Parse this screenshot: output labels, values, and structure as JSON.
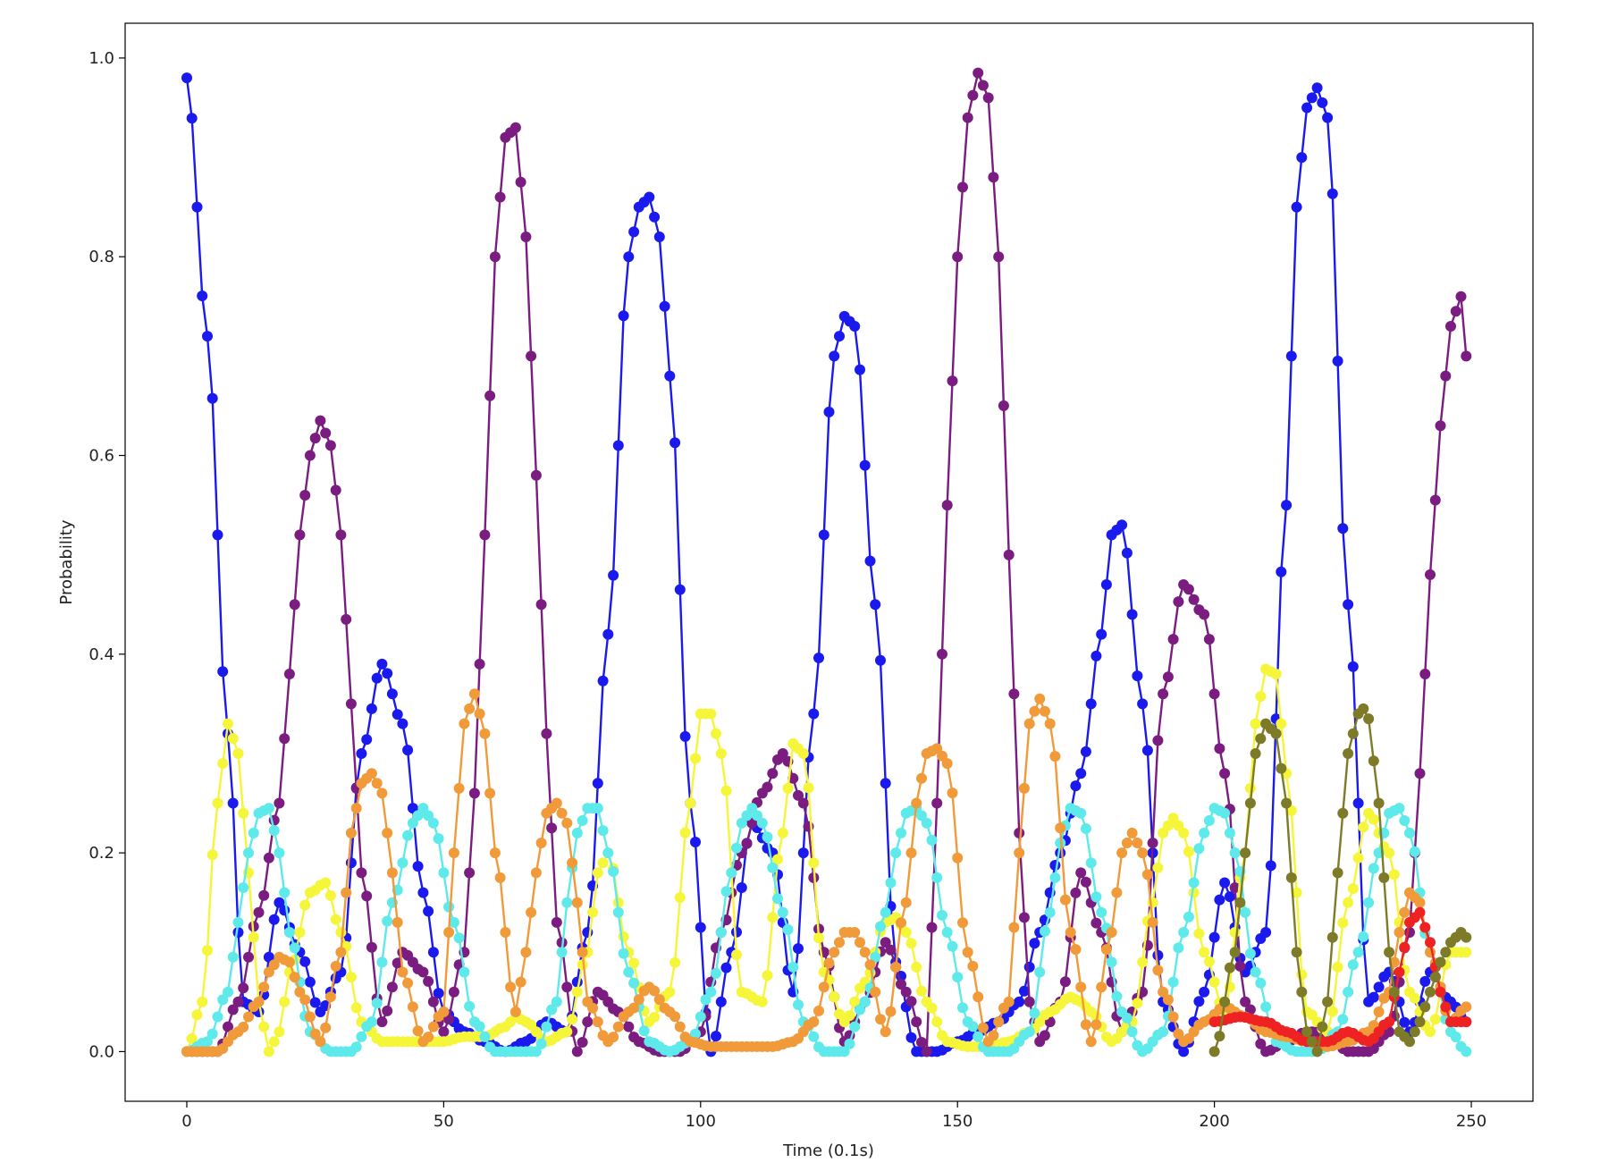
{
  "chart_data": {
    "type": "line",
    "title": "",
    "xlabel": "Time (0.1s)",
    "ylabel": "Probability",
    "xlim": [
      -12,
      262
    ],
    "ylim": [
      -0.05,
      1.035
    ],
    "xticks": [
      0,
      50,
      100,
      150,
      200,
      250
    ],
    "yticks": [
      0.0,
      0.2,
      0.4,
      0.6,
      0.8,
      1.0
    ],
    "grid": false,
    "legend": "none",
    "markers": "circle",
    "series": [
      {
        "color": "#1a1aee",
        "x": [
          0,
          4,
          8,
          11,
          14,
          18,
          22,
          26,
          30,
          34,
          38,
          42,
          46,
          50,
          54,
          58,
          62,
          66,
          70,
          74,
          78,
          82,
          86,
          88,
          90,
          92,
          94,
          98,
          102,
          106,
          110,
          114,
          118,
          122,
          126,
          128,
          130,
          134,
          138,
          142,
          146,
          150,
          154,
          158,
          162,
          166,
          170,
          174,
          178,
          180,
          182,
          186,
          190,
          194,
          198,
          202,
          206,
          210,
          214,
          216,
          218,
          220,
          222,
          226,
          230,
          234,
          238,
          242,
          246,
          249
        ],
        "values": [
          0.98,
          0.72,
          0.32,
          0.05,
          0.04,
          0.15,
          0.1,
          0.04,
          0.08,
          0.3,
          0.39,
          0.33,
          0.16,
          0.04,
          0.02,
          0.01,
          0.0,
          0.01,
          0.03,
          0.02,
          0.12,
          0.42,
          0.8,
          0.85,
          0.86,
          0.82,
          0.68,
          0.25,
          0.0,
          0.1,
          0.23,
          0.2,
          0.06,
          0.34,
          0.7,
          0.74,
          0.73,
          0.45,
          0.09,
          0.0,
          0.0,
          0.01,
          0.02,
          0.03,
          0.05,
          0.12,
          0.2,
          0.28,
          0.42,
          0.52,
          0.53,
          0.35,
          0.05,
          0.0,
          0.06,
          0.17,
          0.08,
          0.12,
          0.55,
          0.85,
          0.95,
          0.97,
          0.94,
          0.45,
          0.05,
          0.08,
          0.02,
          0.08,
          0.05,
          0.03
        ]
      },
      {
        "color": "#7a1c80",
        "x": [
          0,
          6,
          10,
          14,
          18,
          20,
          22,
          24,
          26,
          28,
          30,
          32,
          34,
          38,
          42,
          46,
          50,
          54,
          56,
          58,
          60,
          62,
          64,
          66,
          68,
          70,
          72,
          76,
          80,
          84,
          88,
          92,
          96,
          100,
          104,
          108,
          112,
          116,
          120,
          124,
          128,
          132,
          136,
          140,
          144,
          146,
          148,
          150,
          152,
          154,
          156,
          158,
          160,
          162,
          164,
          166,
          170,
          174,
          178,
          182,
          186,
          190,
          194,
          198,
          202,
          206,
          210,
          214,
          218,
          222,
          226,
          230,
          234,
          238,
          240,
          242,
          244,
          246,
          248,
          249
        ],
        "values": [
          0.0,
          0.0,
          0.05,
          0.14,
          0.25,
          0.38,
          0.52,
          0.6,
          0.635,
          0.61,
          0.52,
          0.35,
          0.18,
          0.03,
          0.1,
          0.08,
          0.02,
          0.1,
          0.26,
          0.52,
          0.8,
          0.92,
          0.93,
          0.82,
          0.58,
          0.32,
          0.13,
          0.0,
          0.06,
          0.04,
          0.01,
          0.0,
          0.0,
          0.02,
          0.12,
          0.2,
          0.26,
          0.3,
          0.25,
          0.1,
          0.01,
          0.05,
          0.11,
          0.06,
          0.0,
          0.25,
          0.55,
          0.8,
          0.94,
          0.985,
          0.96,
          0.8,
          0.5,
          0.22,
          0.05,
          0.01,
          0.05,
          0.18,
          0.12,
          0.02,
          0.06,
          0.36,
          0.47,
          0.44,
          0.28,
          0.05,
          0.0,
          0.01,
          0.02,
          0.02,
          0.0,
          0.0,
          0.02,
          0.12,
          0.28,
          0.48,
          0.63,
          0.73,
          0.76,
          0.7
        ]
      },
      {
        "color": "#f5f53a",
        "x": [
          0,
          3,
          6,
          8,
          10,
          12,
          14,
          16,
          18,
          20,
          24,
          27,
          30,
          34,
          38,
          42,
          46,
          50,
          54,
          58,
          62,
          64,
          66,
          70,
          74,
          78,
          80,
          82,
          86,
          90,
          94,
          98,
          100,
          102,
          104,
          108,
          112,
          116,
          118,
          120,
          124,
          128,
          132,
          136,
          138,
          140,
          144,
          148,
          152,
          156,
          160,
          164,
          168,
          172,
          174,
          176,
          180,
          184,
          188,
          190,
          192,
          194,
          198,
          202,
          206,
          208,
          210,
          212,
          214,
          218,
          222,
          226,
          230,
          234,
          238,
          242,
          246,
          249
        ],
        "values": [
          0.0,
          0.05,
          0.25,
          0.33,
          0.3,
          0.18,
          0.05,
          0.0,
          0.02,
          0.08,
          0.16,
          0.17,
          0.12,
          0.03,
          0.01,
          0.01,
          0.01,
          0.01,
          0.015,
          0.015,
          0.025,
          0.035,
          0.03,
          0.01,
          0.02,
          0.1,
          0.18,
          0.2,
          0.1,
          0.03,
          0.06,
          0.25,
          0.34,
          0.34,
          0.3,
          0.06,
          0.05,
          0.22,
          0.31,
          0.3,
          0.08,
          0.03,
          0.07,
          0.13,
          0.135,
          0.12,
          0.05,
          0.01,
          0.005,
          0.005,
          0.01,
          0.02,
          0.04,
          0.055,
          0.05,
          0.04,
          0.01,
          0.03,
          0.15,
          0.22,
          0.235,
          0.22,
          0.1,
          0.04,
          0.2,
          0.33,
          0.385,
          0.38,
          0.28,
          0.04,
          0.02,
          0.15,
          0.24,
          0.2,
          0.06,
          0.02,
          0.1,
          0.1
        ]
      },
      {
        "color": "#5eeaea",
        "x": [
          0,
          4,
          8,
          10,
          12,
          14,
          16,
          18,
          20,
          24,
          28,
          32,
          36,
          40,
          44,
          46,
          48,
          52,
          56,
          60,
          64,
          68,
          72,
          74,
          76,
          78,
          80,
          82,
          86,
          90,
          94,
          98,
          102,
          106,
          108,
          110,
          112,
          116,
          120,
          124,
          128,
          132,
          136,
          138,
          140,
          142,
          144,
          148,
          152,
          156,
          160,
          164,
          168,
          170,
          172,
          174,
          178,
          182,
          186,
          190,
          194,
          198,
          200,
          202,
          204,
          208,
          212,
          216,
          220,
          224,
          228,
          232,
          234,
          236,
          238,
          242,
          246,
          249
        ],
        "values": [
          0.0,
          0.01,
          0.06,
          0.13,
          0.2,
          0.24,
          0.245,
          0.2,
          0.12,
          0.02,
          0.0,
          0.0,
          0.03,
          0.15,
          0.23,
          0.245,
          0.23,
          0.13,
          0.03,
          0.0,
          0.0,
          0.0,
          0.05,
          0.15,
          0.22,
          0.245,
          0.245,
          0.2,
          0.08,
          0.01,
          0.0,
          0.01,
          0.06,
          0.18,
          0.23,
          0.245,
          0.23,
          0.14,
          0.03,
          0.0,
          0.0,
          0.05,
          0.14,
          0.2,
          0.24,
          0.245,
          0.23,
          0.12,
          0.03,
          0.0,
          0.0,
          0.02,
          0.14,
          0.21,
          0.245,
          0.24,
          0.14,
          0.04,
          0.0,
          0.02,
          0.12,
          0.22,
          0.245,
          0.24,
          0.2,
          0.08,
          0.01,
          0.0,
          0.0,
          0.02,
          0.1,
          0.2,
          0.24,
          0.245,
          0.22,
          0.1,
          0.02,
          0.0
        ]
      },
      {
        "color": "#f09a3a",
        "x": [
          0,
          6,
          10,
          14,
          16,
          18,
          20,
          22,
          26,
          30,
          32,
          34,
          36,
          38,
          40,
          42,
          46,
          50,
          52,
          54,
          56,
          58,
          60,
          64,
          66,
          68,
          70,
          72,
          74,
          76,
          78,
          82,
          86,
          90,
          94,
          98,
          102,
          106,
          110,
          114,
          118,
          122,
          126,
          128,
          130,
          132,
          136,
          140,
          142,
          144,
          146,
          148,
          152,
          156,
          160,
          162,
          164,
          166,
          168,
          172,
          176,
          180,
          182,
          184,
          186,
          190,
          194,
          198,
          202,
          206,
          210,
          214,
          218,
          222,
          226,
          230,
          234,
          236,
          238,
          240,
          242,
          246,
          249
        ],
        "values": [
          0.0,
          0.0,
          0.02,
          0.05,
          0.08,
          0.095,
          0.09,
          0.06,
          0.01,
          0.1,
          0.22,
          0.27,
          0.28,
          0.26,
          0.18,
          0.08,
          0.01,
          0.04,
          0.2,
          0.33,
          0.36,
          0.32,
          0.2,
          0.04,
          0.1,
          0.18,
          0.24,
          0.25,
          0.23,
          0.15,
          0.05,
          0.01,
          0.04,
          0.065,
          0.04,
          0.01,
          0.005,
          0.005,
          0.005,
          0.005,
          0.01,
          0.03,
          0.1,
          0.12,
          0.12,
          0.1,
          0.02,
          0.15,
          0.25,
          0.3,
          0.305,
          0.29,
          0.1,
          0.01,
          0.05,
          0.2,
          0.33,
          0.355,
          0.33,
          0.12,
          0.01,
          0.12,
          0.2,
          0.22,
          0.2,
          0.06,
          0.01,
          0.03,
          0.045,
          0.035,
          0.02,
          0.015,
          0.01,
          0.005,
          0.01,
          0.02,
          0.06,
          0.12,
          0.16,
          0.15,
          0.1,
          0.03,
          0.045
        ]
      },
      {
        "color": "#ee2222",
        "x": [
          200,
          205,
          210,
          214,
          218,
          222,
          226,
          230,
          234,
          236,
          238,
          240,
          242,
          244,
          246,
          249
        ],
        "values": [
          0.03,
          0.035,
          0.03,
          0.02,
          0.01,
          0.01,
          0.02,
          0.01,
          0.03,
          0.08,
          0.13,
          0.14,
          0.11,
          0.06,
          0.03,
          0.03
        ]
      },
      {
        "color": "#7d7a28",
        "x": [
          200,
          204,
          206,
          208,
          210,
          212,
          214,
          216,
          218,
          220,
          222,
          224,
          226,
          228,
          229,
          230,
          232,
          234,
          236,
          238,
          240,
          242,
          244,
          246,
          248,
          249
        ],
        "values": [
          0.0,
          0.1,
          0.2,
          0.3,
          0.33,
          0.32,
          0.25,
          0.1,
          0.02,
          0.0,
          0.05,
          0.18,
          0.3,
          0.34,
          0.345,
          0.335,
          0.25,
          0.1,
          0.02,
          0.01,
          0.03,
          0.06,
          0.09,
          0.11,
          0.12,
          0.115
        ]
      }
    ]
  }
}
